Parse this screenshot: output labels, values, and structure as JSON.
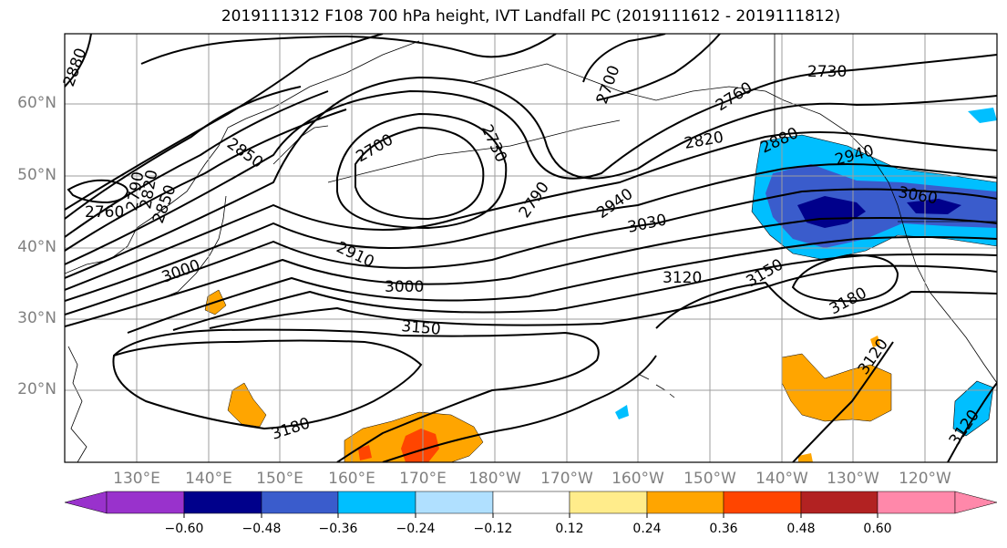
{
  "title": "2019111312 F108 700 hPa height, IVT Landfall PC (2019111612 - 2019111812)",
  "map": {
    "latitude_labels": [
      "60°N",
      "50°N",
      "40°N",
      "30°N",
      "20°N"
    ],
    "longitude_labels": [
      "130°E",
      "140°E",
      "150°E",
      "160°E",
      "170°E",
      "180°W",
      "170°W",
      "160°W",
      "150°W",
      "140°W",
      "130°W",
      "120°W"
    ],
    "contour_labels": [
      "2880",
      "2760",
      "2790",
      "2820",
      "2850",
      "2850",
      "2700",
      "2730",
      "2790",
      "2940",
      "3030",
      "2910",
      "3000",
      "3000",
      "3150",
      "3180",
      "2700",
      "2730",
      "2760",
      "2820",
      "2880",
      "2940",
      "3060",
      "3120",
      "3150",
      "3180",
      "3120",
      "3120"
    ]
  },
  "colorbar": {
    "tick_labels": [
      "−0.60",
      "−0.48",
      "−0.36",
      "−0.24",
      "−0.12",
      "0.12",
      "0.24",
      "0.36",
      "0.48",
      "0.60"
    ],
    "colors": [
      "#9932cc",
      "#00008b",
      "#3a5ccc",
      "#00bfff",
      "#b0e0ff",
      "#ffffff",
      "#ffec8b",
      "#ffa500",
      "#ff4500",
      "#b22222",
      "#ff88aa"
    ]
  }
}
